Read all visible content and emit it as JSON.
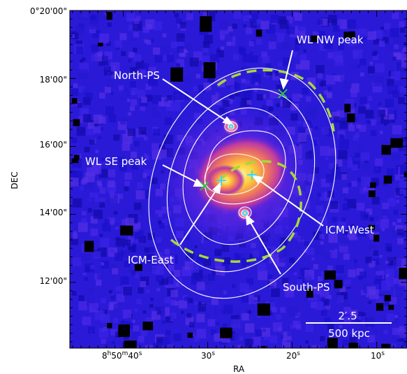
{
  "chart_data": {
    "type": "image",
    "xlabel": "RA",
    "ylabel": "DEC",
    "x_ticks": [
      {
        "major": "8",
        "sup1": "h",
        "mid": "50",
        "sup2": "m",
        "minor": "40",
        "sup3": "s",
        "ra_sec": 40
      },
      {
        "major": "30",
        "sup1": "s",
        "ra_sec": 30
      },
      {
        "major": "20",
        "sup1": "s",
        "ra_sec": 20
      },
      {
        "major": "10",
        "sup1": "s",
        "ra_sec": 10
      }
    ],
    "y_ticks": [
      {
        "label": "0°20'00\"",
        "dec_min": 20
      },
      {
        "label": "18'00\"",
        "dec_min": 18
      },
      {
        "label": "16'00\"",
        "dec_min": 16
      },
      {
        "label": "14'00\"",
        "dec_min": 14
      },
      {
        "label": "12'00\"",
        "dec_min": 12
      }
    ],
    "ra_range_sec": [
      46.5,
      3.5
    ],
    "dec_range_min": [
      10.0,
      20.0
    ],
    "annotations": [
      {
        "label": "WL NW peak",
        "ra": 21.3,
        "dec": 17.6
      },
      {
        "label": "North-PS",
        "ra": 26.9,
        "dec": 16.6
      },
      {
        "label": "WL SE peak",
        "ra": 29.7,
        "dec": 14.85
      },
      {
        "label": "ICM-West",
        "ra": 23.4,
        "dec": 15.1
      },
      {
        "label": "ICM-East",
        "ra": 28.9,
        "dec": 15.0
      },
      {
        "label": "South-PS",
        "ra": 25.8,
        "dec": 13.9
      }
    ],
    "scale_bar": {
      "angle": "2′.5",
      "length": "500 kpc"
    },
    "colors": {
      "background": "#2a1ad8",
      "core": "#ffe34a",
      "mid": "#e0326e",
      "contour": "#ffffff",
      "dashed_arc": "#a6d83a",
      "cross_green": "#2ec04a",
      "cross_cyan": "#37d8ff"
    }
  }
}
